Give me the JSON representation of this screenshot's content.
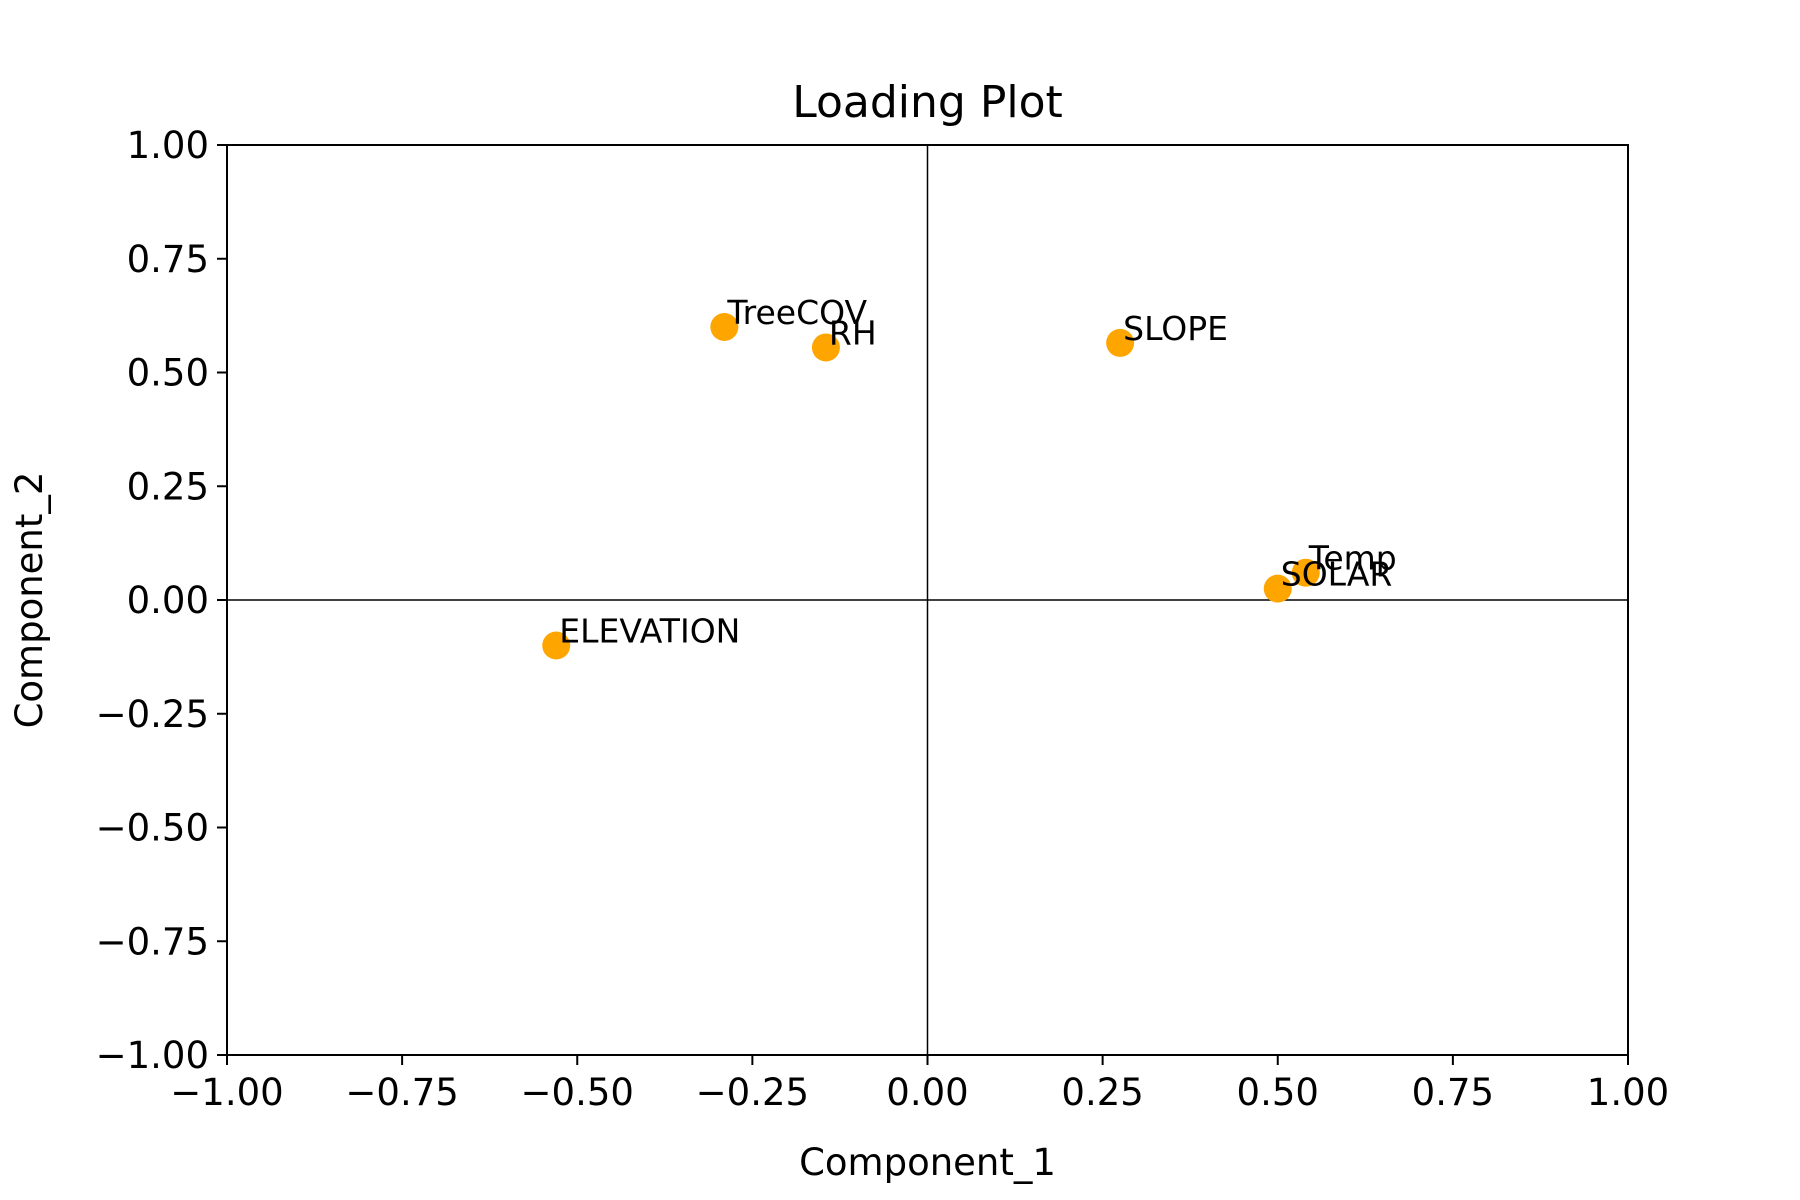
{
  "chart_data": {
    "type": "scatter",
    "title": "Loading Plot",
    "xlabel": "Component_1",
    "ylabel": "Component_2",
    "xlim": [
      -1.0,
      1.0
    ],
    "ylim": [
      -1.0,
      1.0
    ],
    "xticks": [
      -1.0,
      -0.75,
      -0.5,
      -0.25,
      0.0,
      0.25,
      0.5,
      0.75,
      1.0
    ],
    "yticks": [
      -1.0,
      -0.75,
      -0.5,
      -0.25,
      0.0,
      0.25,
      0.5,
      0.75,
      1.0
    ],
    "xtick_labels": [
      "−1.00",
      "−0.75",
      "−0.50",
      "−0.25",
      "0.00",
      "0.25",
      "0.50",
      "0.75",
      "1.00"
    ],
    "ytick_labels": [
      "−1.00",
      "−0.75",
      "−0.50",
      "−0.25",
      "0.00",
      "0.25",
      "0.50",
      "0.75",
      "1.00"
    ],
    "reference_lines": {
      "x": 0,
      "y": 0
    },
    "grid": false,
    "marker_color": "#FFA500",
    "points": [
      {
        "label": "TreeCOV",
        "x": -0.29,
        "y": 0.6
      },
      {
        "label": "RH",
        "x": -0.145,
        "y": 0.555
      },
      {
        "label": "SLOPE",
        "x": 0.275,
        "y": 0.565
      },
      {
        "label": "Temp",
        "x": 0.54,
        "y": 0.06
      },
      {
        "label": "SOLAR",
        "x": 0.5,
        "y": 0.025
      },
      {
        "label": "ELEVATION",
        "x": -0.53,
        "y": -0.1
      }
    ]
  }
}
